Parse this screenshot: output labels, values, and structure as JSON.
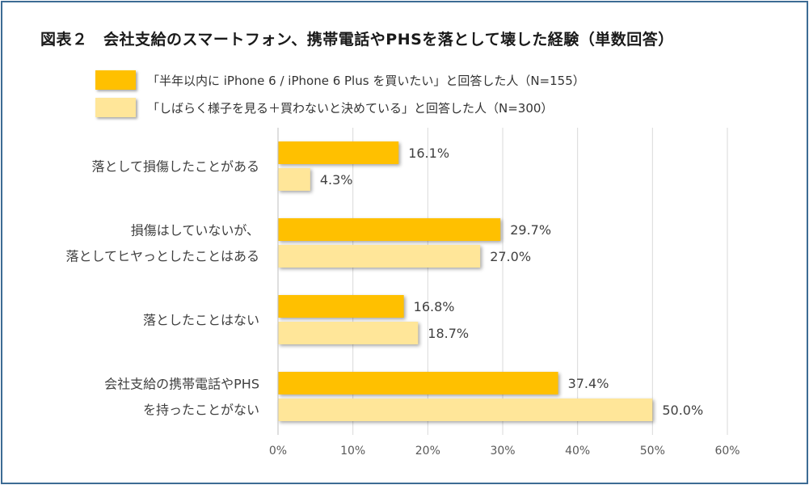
{
  "chart_data": {
    "type": "bar",
    "orientation": "horizontal",
    "title": "図表２　会社支給のスマートフォン、携帯電話やPHSを落として壊した経験（単数回答）",
    "categories": [
      [
        "落として損傷したことがある"
      ],
      [
        "損傷はしていないが、",
        "落としてヒヤっとしたことはある"
      ],
      [
        "落としたことはない"
      ],
      [
        "会社支給の携帯電話やPHS",
        "を持ったことがない"
      ]
    ],
    "series": [
      {
        "name": "「半年以内に iPhone 6 / iPhone 6 Plus を買いたい」と回答した人（N=155）",
        "color": "#ffc000",
        "values": [
          16.1,
          29.7,
          16.8,
          37.4
        ],
        "labels": [
          "16.1%",
          "29.7%",
          "16.8%",
          "37.4%"
        ]
      },
      {
        "name": "「しばらく様子を見る＋買わないと決めている」と回答した人（N=300）",
        "color": "#ffe699",
        "values": [
          4.3,
          27.0,
          18.7,
          50.0
        ],
        "labels": [
          "4.3%",
          "27.0%",
          "18.7%",
          "50.0%"
        ]
      }
    ],
    "xlim": [
      0,
      60
    ],
    "xticks": [
      "0%",
      "10%",
      "20%",
      "30%",
      "40%",
      "50%",
      "60%"
    ],
    "grid": true,
    "legend_position": "top-left"
  }
}
